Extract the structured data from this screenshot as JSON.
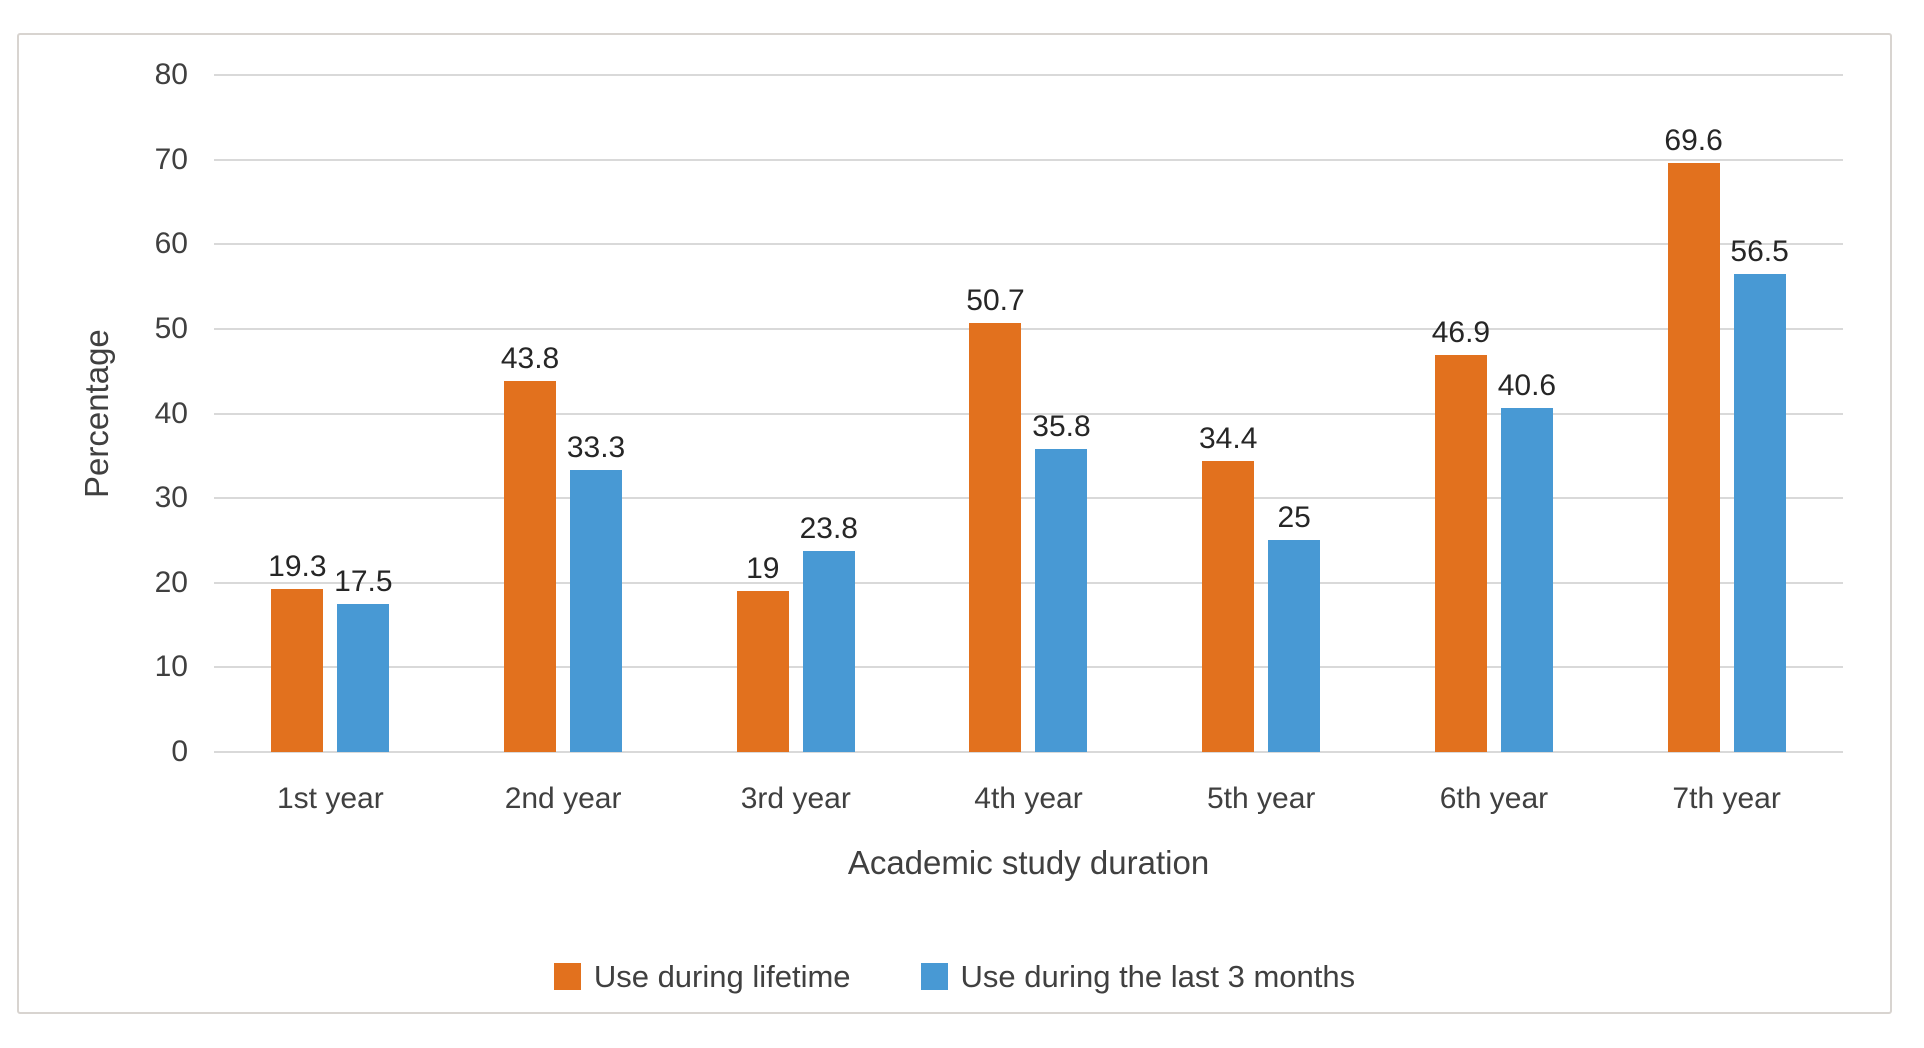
{
  "chart_data": {
    "type": "bar",
    "title": "",
    "categories": [
      "1st year",
      "2nd year",
      "3rd year",
      "4th year",
      "5th year",
      "6th year",
      "7th year"
    ],
    "series": [
      {
        "name": "Use during lifetime",
        "color": "#e2711e",
        "values": [
          19.3,
          43.8,
          19,
          50.7,
          34.4,
          46.9,
          69.6
        ],
        "labels": [
          "19.3",
          "43.8",
          "19",
          "50.7",
          "34.4",
          "46.9",
          "69.6"
        ]
      },
      {
        "name": "Use during the last 3 months",
        "color": "#4899d4",
        "values": [
          17.5,
          33.3,
          23.8,
          35.8,
          25,
          40.6,
          56.5
        ],
        "labels": [
          "17.5",
          "33.3",
          "23.8",
          "35.8",
          "25",
          "40.6",
          "56.5"
        ]
      }
    ],
    "xlabel": "Academic study duration",
    "ylabel": "Percentage",
    "ylim": [
      0,
      80
    ],
    "yticks": [
      0,
      10,
      20,
      30,
      40,
      50,
      60,
      70,
      80
    ],
    "grid": true,
    "legend_position": "bottom"
  },
  "colors": {
    "grid": "#d9d9d9",
    "axis_text": "#404040",
    "data_label_text": "#262626",
    "frame_border": "#d8d4d0",
    "background": "#ffffff"
  }
}
